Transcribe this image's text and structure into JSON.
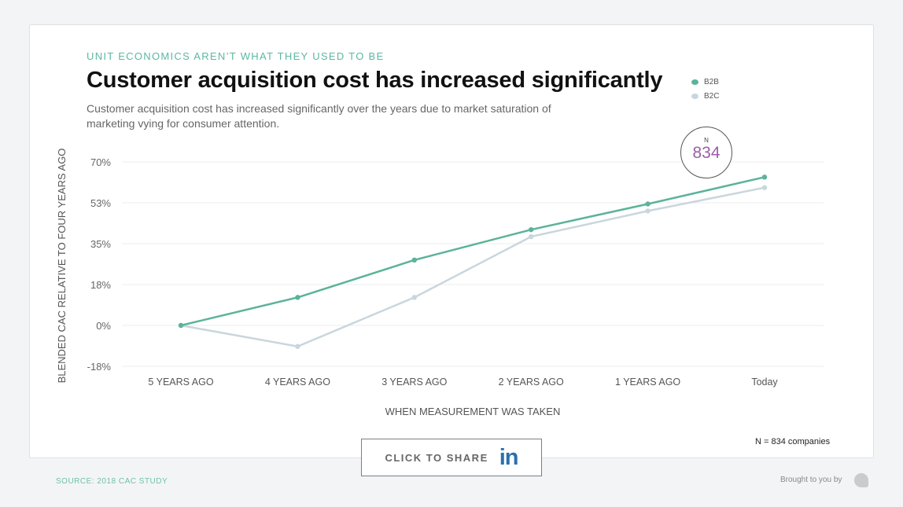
{
  "kicker": "UNIT ECONOMICS AREN’T WHAT THEY USED TO BE",
  "subtitle": "Customer acquisition cost has increased significantly over the years due to market saturation of marketing vying for consumer attention.",
  "n_badge": {
    "label": "N",
    "value": "834"
  },
  "n_note": "N = 834 companies",
  "share": {
    "label": "CLICK TO SHARE",
    "icon": "linkedin-icon",
    "icon_text": "in"
  },
  "source": "SOURCE: 2018 CAC STUDY",
  "brought_by": "Brought to you by",
  "colors": {
    "b2b": "#5bb39a",
    "b2c": "#c9d6dd",
    "accent": "#9b5ea7",
    "kicker": "#5bb8a0"
  },
  "chart_data": {
    "type": "line",
    "title": "Customer acquisition cost has increased significantly",
    "xlabel": "WHEN MEASUREMENT WAS TAKEN",
    "ylabel": "BLENDED CAC RELATIVE TO FOUR YEARS AGO",
    "categories": [
      "5 YEARS AGO",
      "4 YEARS AGO",
      "3 YEARS AGO",
      "2 YEARS AGO",
      "1 YEARS AGO",
      "Today"
    ],
    "yticks": [
      "70%",
      "53%",
      "35%",
      "18%",
      "0%",
      "-18%"
    ],
    "ytick_values": [
      70,
      52.5,
      35,
      17.5,
      0,
      -17.5
    ],
    "ylim": [
      -17.5,
      70
    ],
    "grid": true,
    "legend": "top-right",
    "series": [
      {
        "name": "B2B",
        "values": [
          0,
          12,
          28,
          41,
          52,
          63.5
        ]
      },
      {
        "name": "B2C",
        "values": [
          0,
          -9,
          12,
          38,
          49,
          59
        ]
      }
    ]
  }
}
